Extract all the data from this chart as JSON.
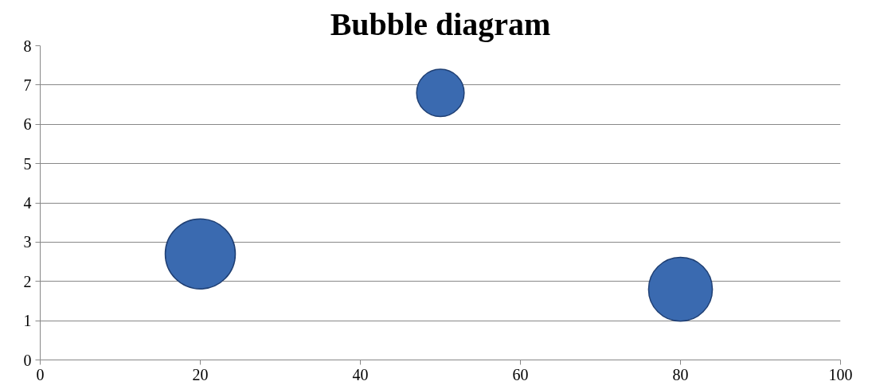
{
  "chart_data": {
    "type": "bubble",
    "title": "Bubble diagram",
    "x": [
      20,
      50,
      80
    ],
    "series": [
      {
        "color": "#3a6ab0",
        "values": [
          2.7,
          6.8,
          1.8
        ],
        "sizes": [
          1,
          0.46,
          0.83
        ]
      }
    ],
    "xlim": [
      0,
      100
    ],
    "xticks": [
      0,
      20,
      40,
      60,
      80,
      100
    ],
    "ylim": [
      0,
      8
    ],
    "yticks": [
      0,
      1,
      2,
      3,
      4,
      5,
      6,
      7,
      8
    ],
    "grid": "y"
  }
}
